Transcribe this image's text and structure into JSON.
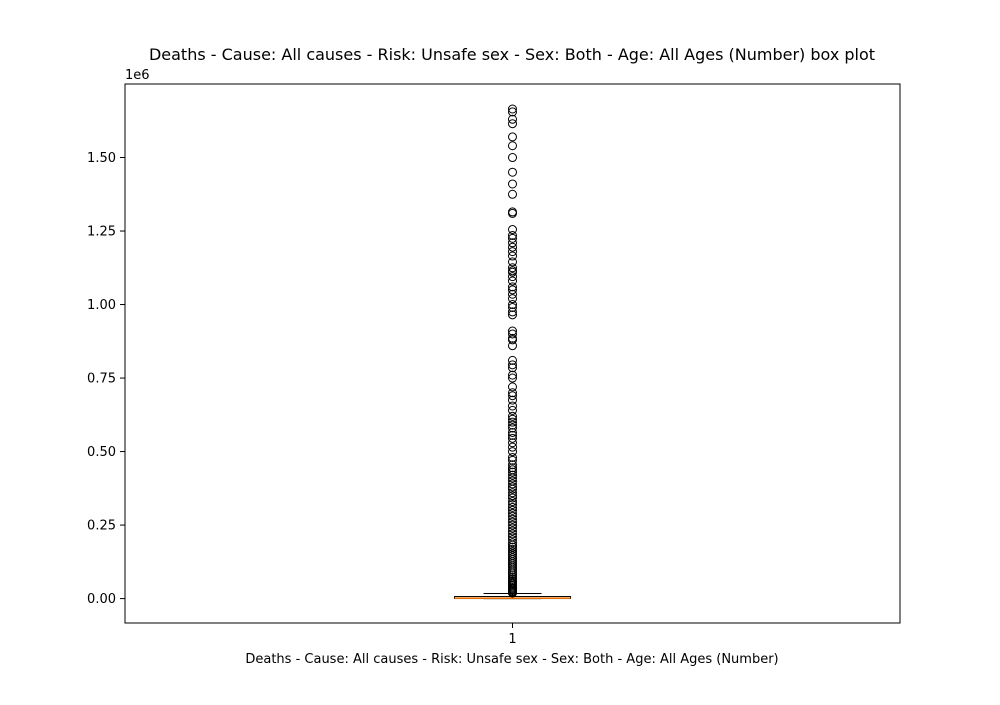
{
  "chart_data": {
    "type": "box",
    "title": "Deaths - Cause: All causes - Risk: Unsafe sex - Sex: Both - Age: All Ages (Number) box plot",
    "xlabel": "Deaths - Cause: All causes - Risk: Unsafe sex - Sex: Both - Age: All Ages (Number)",
    "ylabel": "",
    "y_offset_label": "1e6",
    "x_tick_labels": [
      "1"
    ],
    "y_ticks": [
      0,
      250000,
      500000,
      750000,
      1000000,
      1250000,
      1500000
    ],
    "y_tick_labels": [
      "0.00",
      "0.25",
      "0.50",
      "0.75",
      "1.00",
      "1.25",
      "1.50"
    ],
    "ylim": [
      -83000,
      1750000
    ],
    "grid": false,
    "series": [
      {
        "category": "1",
        "whisker_low": 0,
        "q1": 200,
        "median": 1500,
        "q3": 7000,
        "whisker_high": 17500,
        "outliers": [
          1665000,
          1655000,
          1630000,
          1615000,
          1570000,
          1540000,
          1500000,
          1450000,
          1410000,
          1375000,
          1315000,
          1310000,
          1255000,
          1235000,
          1225000,
          1210000,
          1195000,
          1180000,
          1165000,
          1145000,
          1125000,
          1115000,
          1110000,
          1095000,
          1080000,
          1060000,
          1050000,
          1035000,
          1020000,
          1000000,
          990000,
          975000,
          965000,
          910000,
          900000,
          885000,
          880000,
          860000,
          810000,
          795000,
          785000,
          760000,
          750000,
          720000,
          700000,
          690000,
          675000,
          655000,
          640000,
          620000,
          610000,
          600000,
          590000,
          580000,
          565000,
          555000,
          545000,
          530000,
          515000,
          500000,
          480000,
          470000,
          455000,
          445000,
          438000,
          430000,
          420000,
          410000,
          400000,
          390000,
          380000,
          372000,
          360000,
          350000,
          342000,
          330000,
          320000,
          310000,
          300000,
          290000,
          280000,
          270000,
          260000,
          250000,
          240000,
          230000,
          220000,
          210000,
          200000,
          190000,
          182000,
          175000,
          168000,
          160000,
          153000,
          146000,
          139000,
          132000,
          125000,
          118000,
          111000,
          104000,
          97000,
          90000,
          84000,
          78000,
          72000,
          66000,
          60000,
          55000,
          50000,
          45000,
          40000,
          36000,
          32000,
          28000,
          24000,
          21000,
          19000
        ]
      }
    ]
  }
}
